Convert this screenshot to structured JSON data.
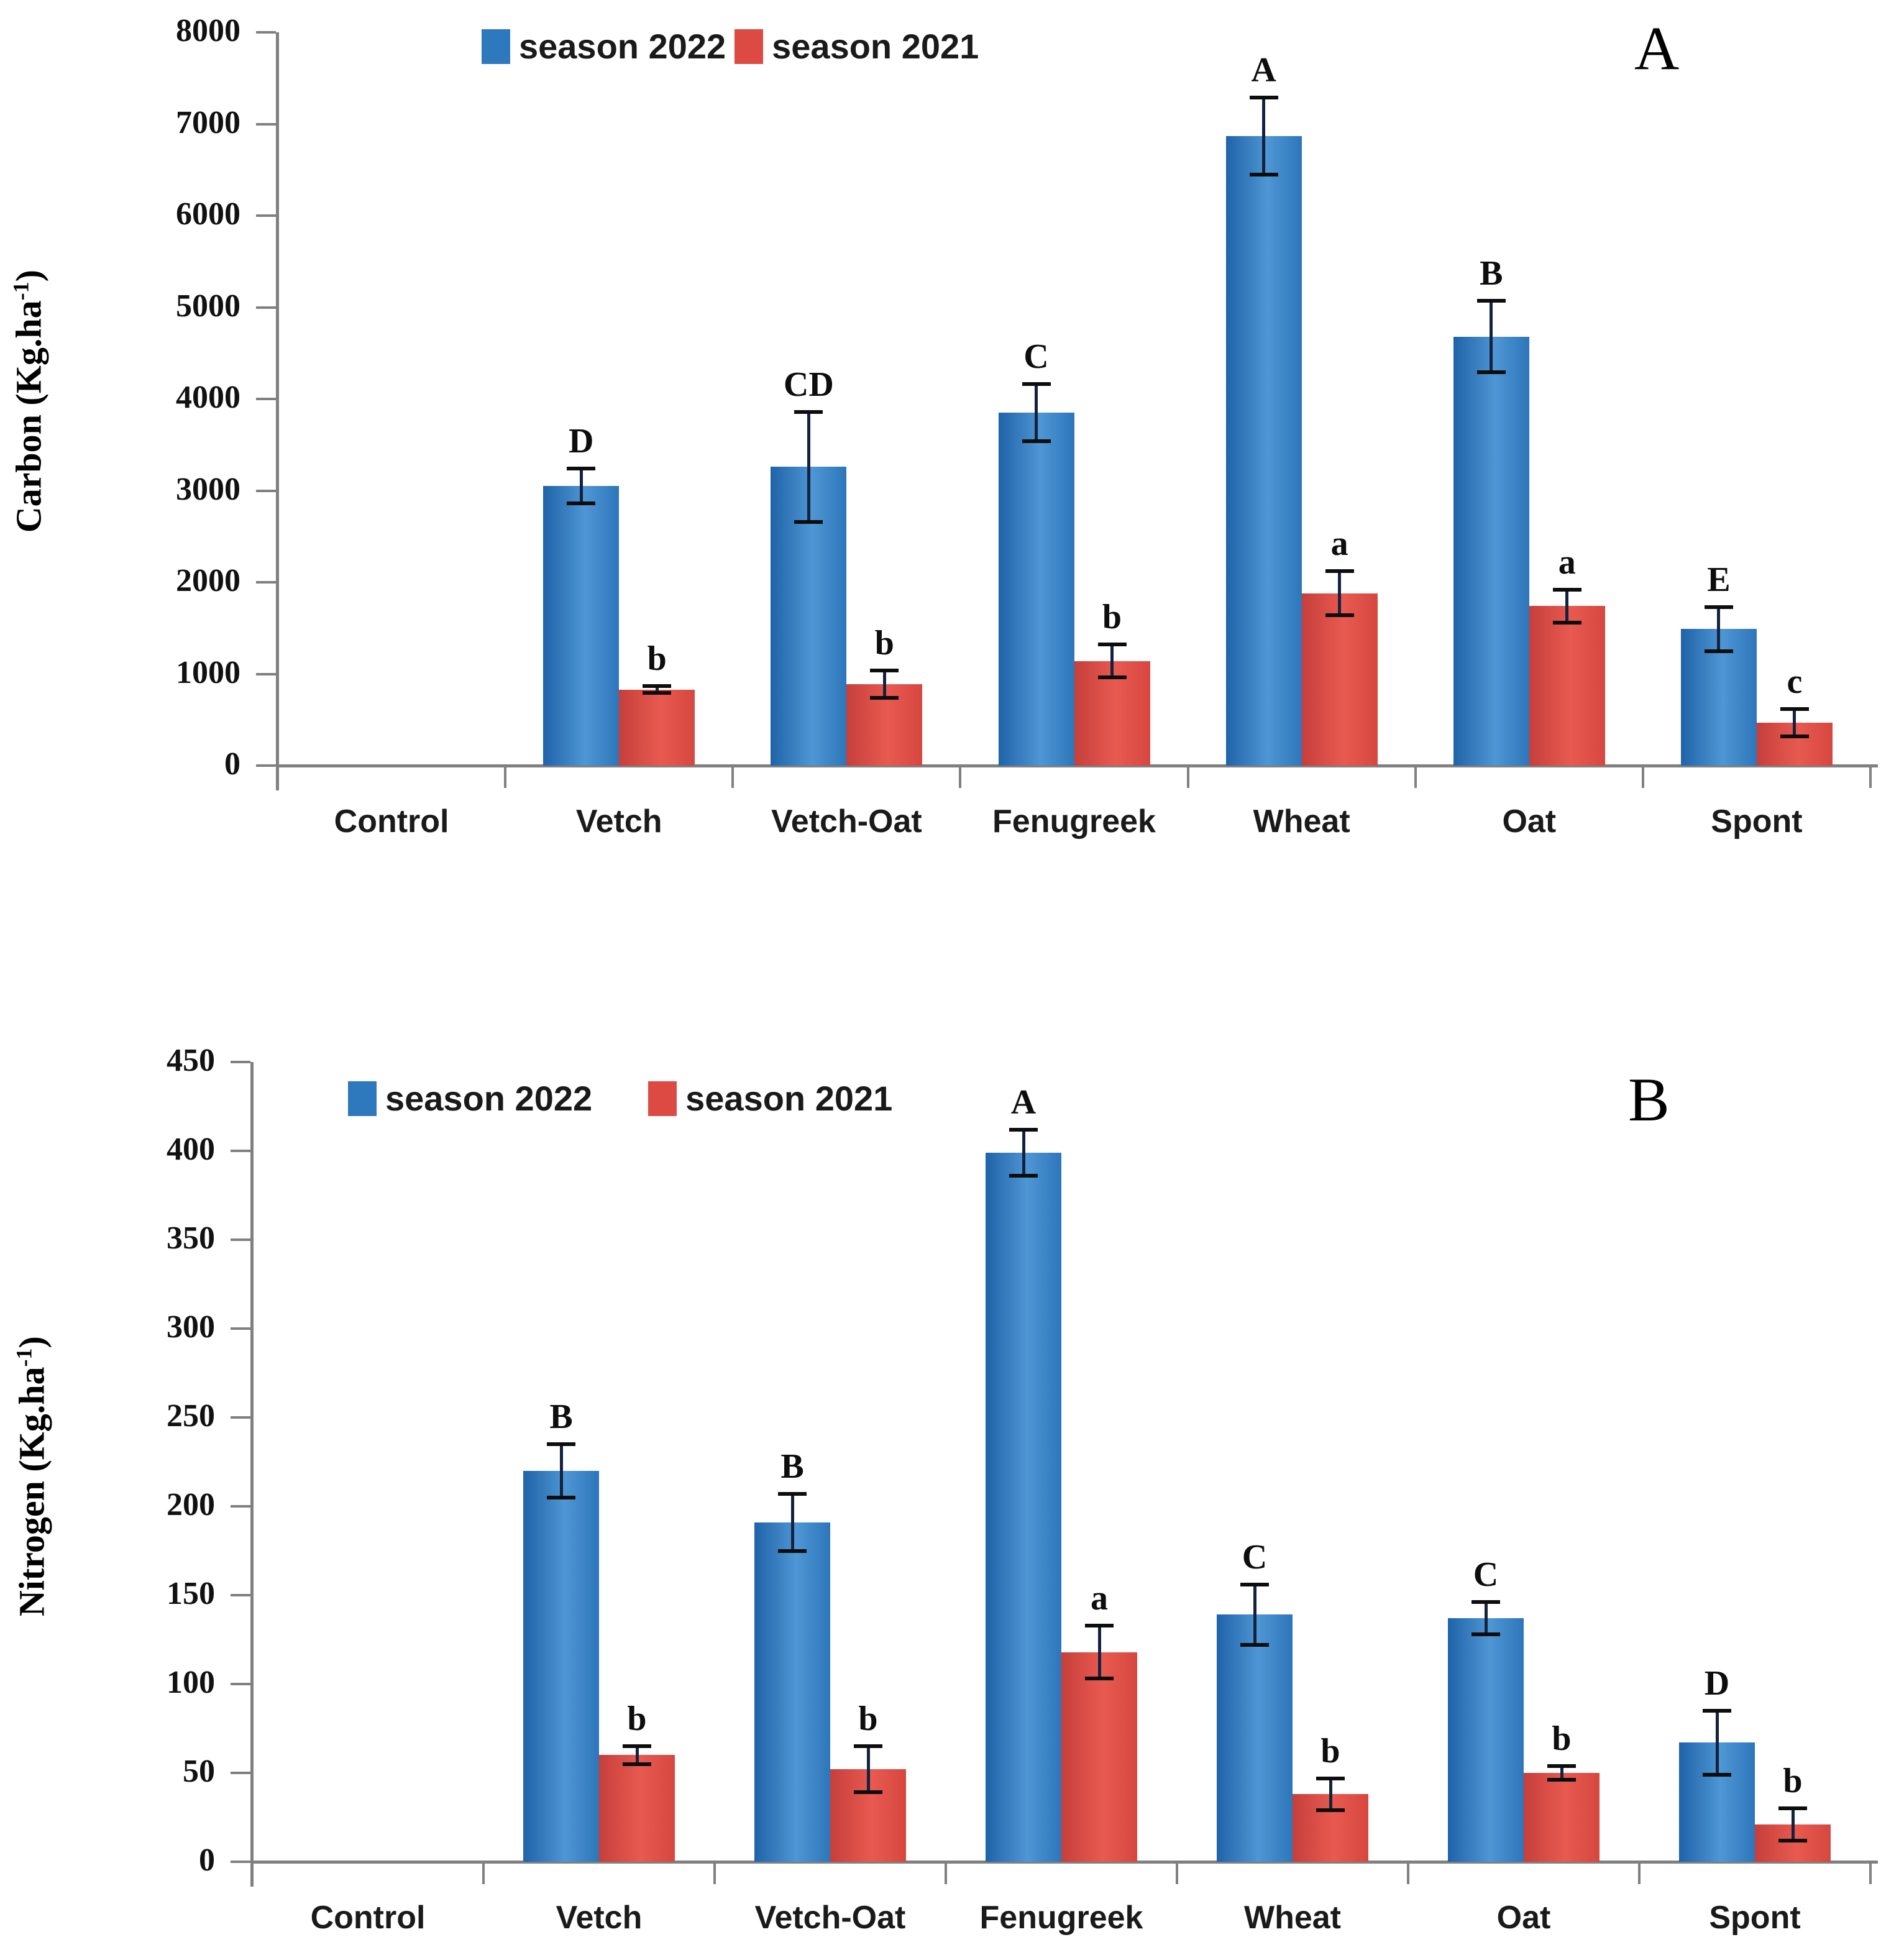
{
  "colors": {
    "season2022": "#2e78be",
    "season2021": "#dd4a44",
    "axis": "#808080",
    "error_bar": "#0d0d0d"
  },
  "chart_data": [
    {
      "id": "A",
      "type": "bar",
      "panel_label": "A",
      "ylabel": {
        "prefix": "Carbon (Kg.ha",
        "sup": "-1",
        "suffix": ")"
      },
      "ylabel_text": "Carbon (Kg.ha-1)",
      "legend_position": "top",
      "legend": [
        "season 2022",
        "season 2021"
      ],
      "categories": [
        "Control",
        "Vetch",
        "Vetch-Oat",
        "Fenugreek",
        "Wheat",
        "Oat",
        "Spont"
      ],
      "ylim": [
        0,
        8000
      ],
      "ytick_step": 1000,
      "yticks": [
        "8000",
        "7000",
        "6000",
        "5000",
        "4000",
        "3000",
        "2000",
        "1000",
        "0"
      ],
      "grid": false,
      "series": [
        {
          "name": "season 2022",
          "color_key": "season2022",
          "values": [
            0,
            3050,
            3260,
            3850,
            6870,
            4680,
            1490
          ],
          "errors": [
            0,
            190,
            600,
            310,
            420,
            390,
            240
          ],
          "letters": [
            "",
            "D",
            "CD",
            "C",
            "A",
            "B",
            "E"
          ]
        },
        {
          "name": "season 2021",
          "color_key": "season2021",
          "values": [
            0,
            830,
            890,
            1140,
            1880,
            1740,
            470
          ],
          "errors": [
            0,
            40,
            150,
            180,
            240,
            180,
            150
          ],
          "letters": [
            "",
            "b",
            "b",
            "b",
            "a",
            "a",
            "c"
          ]
        }
      ]
    },
    {
      "id": "B",
      "type": "bar",
      "panel_label": "B",
      "ylabel": {
        "prefix": "Nitrogen (Kg.ha",
        "sup": "-1",
        "suffix": ")"
      },
      "ylabel_text": "Nitrogen (Kg.ha-1)",
      "legend_position": "top",
      "legend": [
        "season 2022",
        "season 2021"
      ],
      "categories": [
        "Control",
        "Vetch",
        "Vetch-Oat",
        "Fenugreek",
        "Wheat",
        "Oat",
        "Spont"
      ],
      "ylim": [
        0,
        450
      ],
      "ytick_step": 50,
      "yticks": [
        "450",
        "400",
        "350",
        "300",
        "250",
        "200",
        "150",
        "100",
        "50",
        "0"
      ],
      "grid": false,
      "series": [
        {
          "name": "season 2022",
          "color_key": "season2022",
          "values": [
            0,
            220,
            191,
            399,
            139,
            137,
            67
          ],
          "errors": [
            0,
            15,
            16,
            13,
            17,
            9,
            18
          ],
          "letters": [
            "",
            "B",
            "B",
            "A",
            "C",
            "C",
            "D"
          ]
        },
        {
          "name": "season 2021",
          "color_key": "season2021",
          "values": [
            0,
            60,
            52,
            118,
            38,
            50,
            21
          ],
          "errors": [
            0,
            5,
            13,
            15,
            9,
            4,
            9
          ],
          "letters": [
            "",
            "b",
            "b",
            "a",
            "b",
            "b",
            "b"
          ]
        }
      ]
    }
  ]
}
